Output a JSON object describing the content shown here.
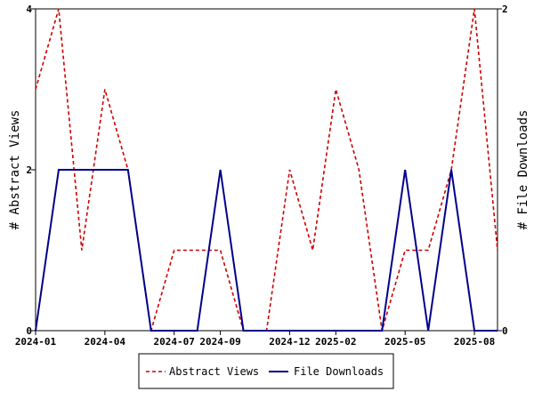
{
  "chart_data": {
    "type": "line",
    "x": [
      "2024-01",
      "2024-02",
      "2024-03",
      "2024-04",
      "2024-05",
      "2024-06",
      "2024-07",
      "2024-08",
      "2024-09",
      "2024-10",
      "2024-11",
      "2024-12",
      "2025-01",
      "2025-02",
      "2025-03",
      "2025-04",
      "2025-05",
      "2025-06",
      "2025-07",
      "2025-08",
      "2025-09"
    ],
    "series": [
      {
        "name": "Abstract Views",
        "axis": "left",
        "color": "#cc0000",
        "dash": "dashed",
        "values": [
          3,
          4,
          1,
          3,
          2,
          0,
          1,
          1,
          1,
          0,
          0,
          2,
          1,
          3,
          2,
          0,
          1,
          1,
          2,
          4,
          1
        ]
      },
      {
        "name": "File Downloads",
        "axis": "right",
        "color": "#00008b",
        "dash": "solid",
        "values": [
          0,
          1,
          1,
          1,
          1,
          0,
          0,
          0,
          1,
          0,
          0,
          0,
          0,
          0,
          0,
          0,
          1,
          0,
          1,
          0,
          0
        ]
      }
    ],
    "xticks": [
      "2024-01",
      "2024-04",
      "2024-07",
      "2024-09",
      "2024-12",
      "2025-02",
      "2025-05",
      "2025-08"
    ],
    "ylabel": "# Abstract Views",
    "y2label": "# File Downloads",
    "ylim": [
      0,
      4
    ],
    "yticks": [
      0,
      2,
      4
    ],
    "y2lim": [
      0,
      2
    ],
    "y2ticks": [
      0,
      2
    ],
    "grid": false,
    "legend": "bottom-center"
  }
}
